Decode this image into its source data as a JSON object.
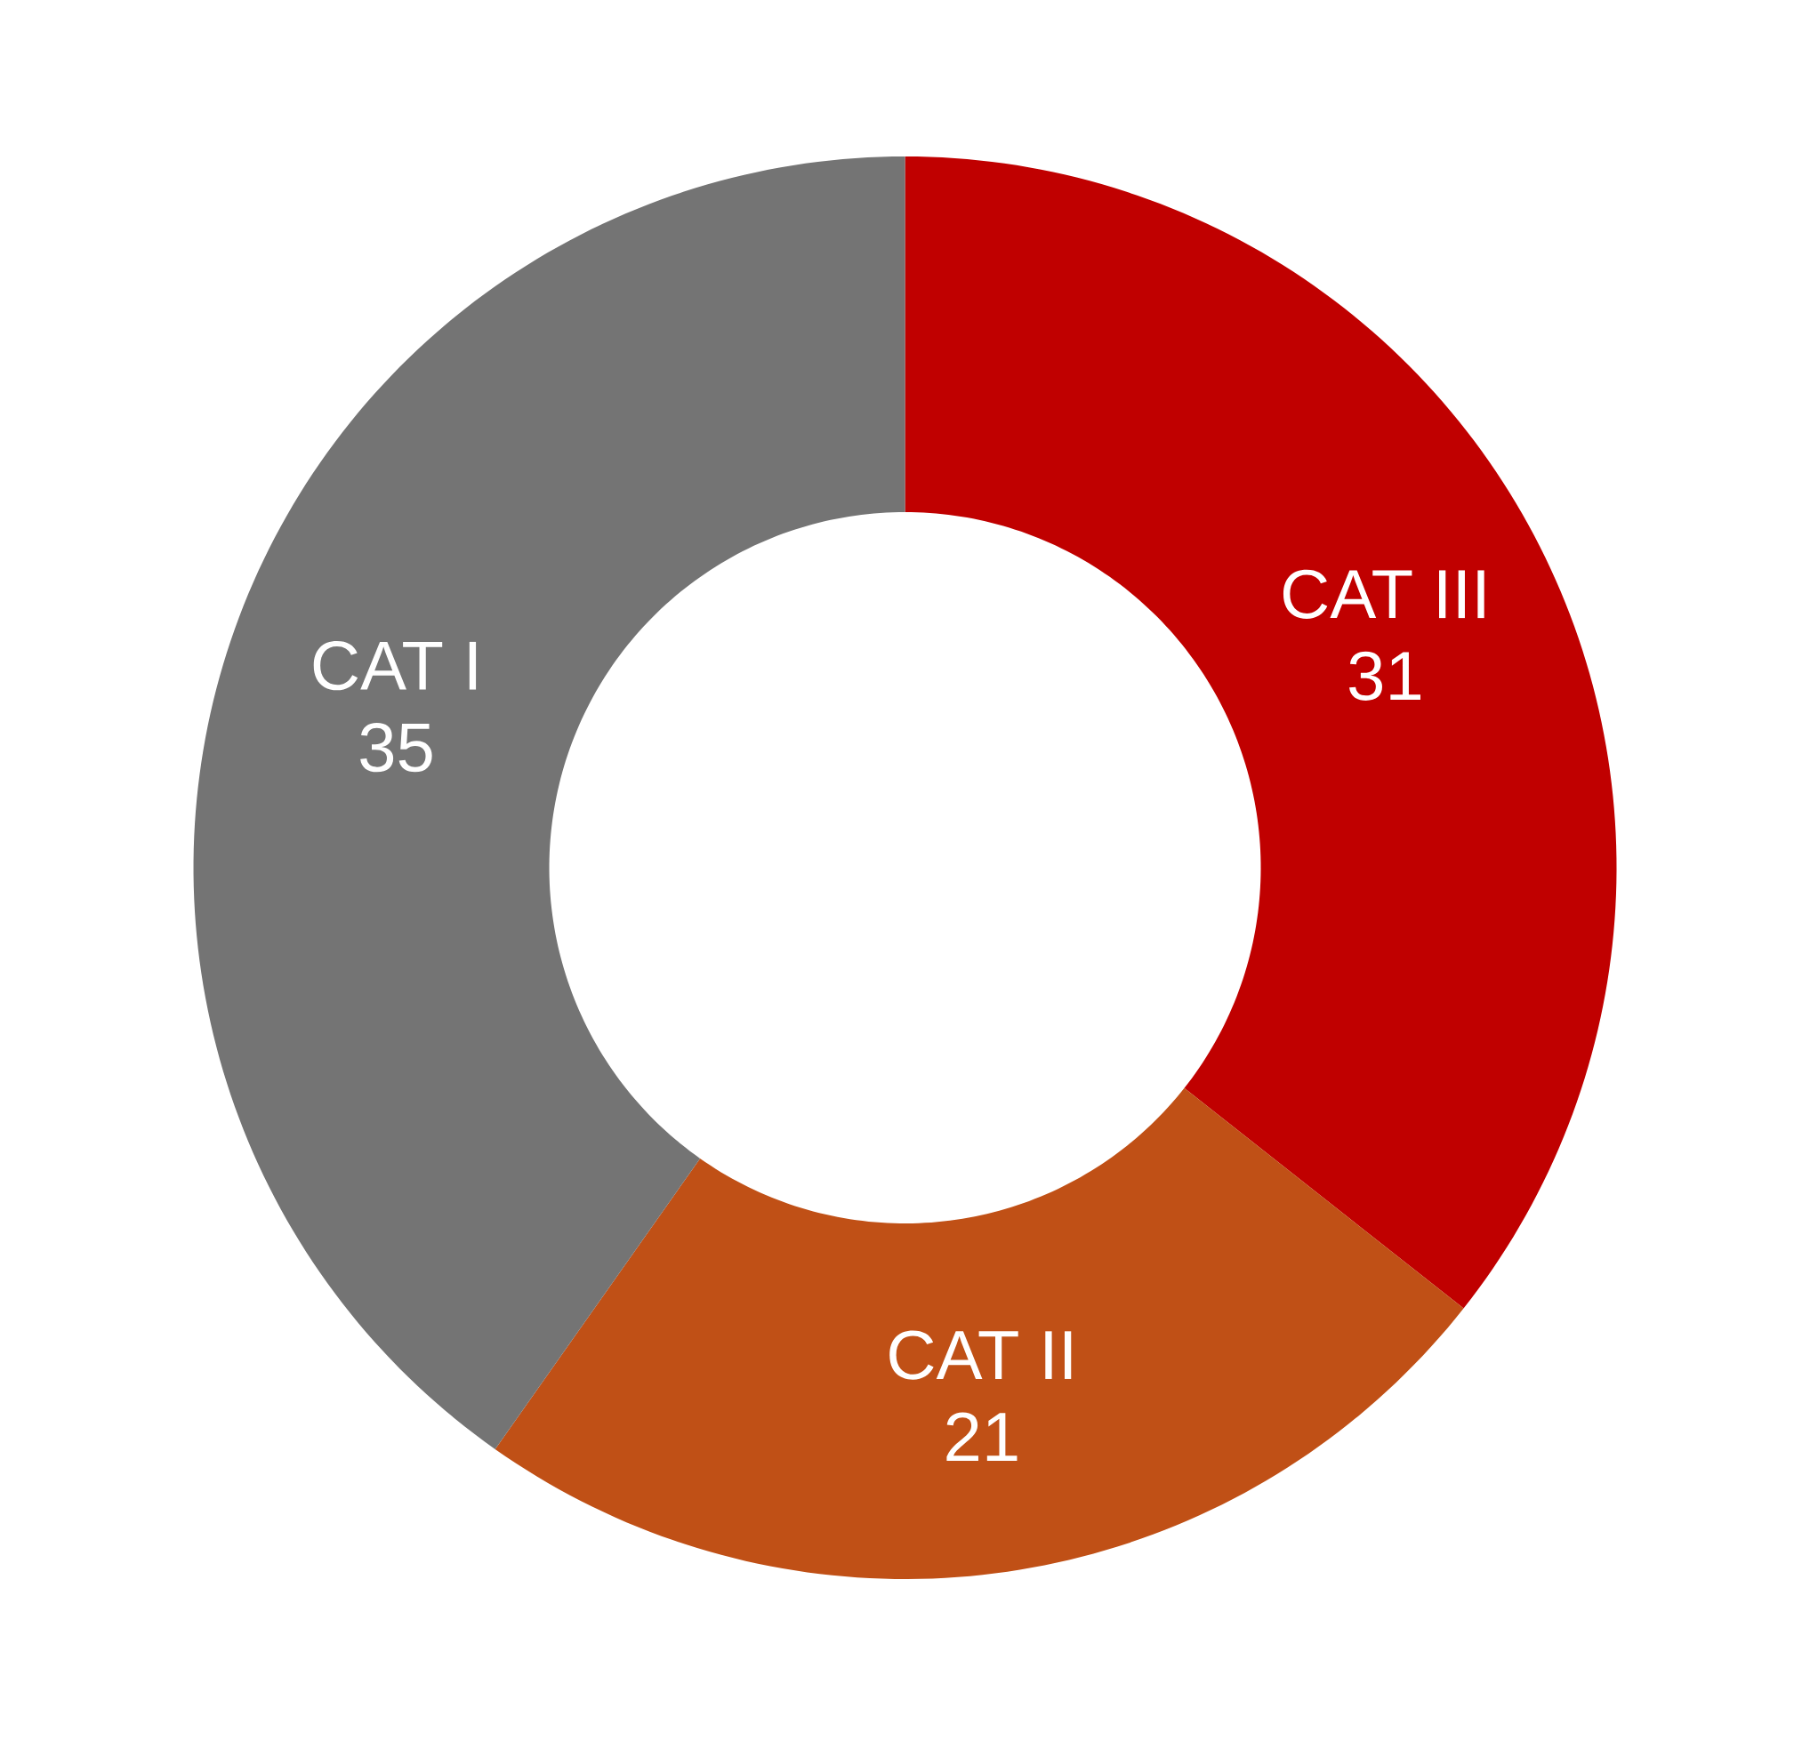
{
  "chart_data": {
    "type": "donut",
    "categories": [
      "CAT III",
      "CAT II",
      "CAT I"
    ],
    "values": [
      31,
      21,
      35
    ],
    "colors": [
      "#c00000",
      "#c05016",
      "#747474"
    ],
    "data_labels": true
  }
}
